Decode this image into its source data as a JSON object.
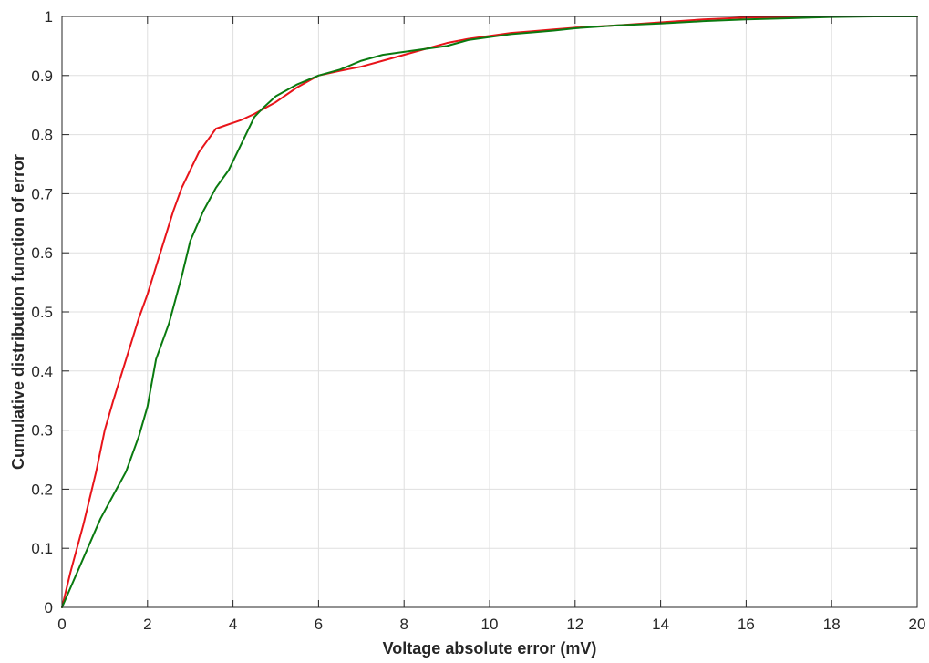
{
  "chart_data": {
    "type": "line",
    "title": "",
    "xlabel": "Voltage absolute error (mV)",
    "ylabel": "Cumulative distribution function of error",
    "xlim": [
      0,
      20
    ],
    "ylim": [
      0,
      1
    ],
    "xticks": [
      0,
      2,
      4,
      6,
      8,
      10,
      12,
      14,
      16,
      18,
      20
    ],
    "yticks": [
      0,
      0.1,
      0.2,
      0.3,
      0.4,
      0.5,
      0.6,
      0.7,
      0.8,
      0.9,
      1
    ],
    "xtick_labels": [
      "0",
      "2",
      "4",
      "6",
      "8",
      "10",
      "12",
      "14",
      "16",
      "18",
      "20"
    ],
    "ytick_labels": [
      "0",
      "0.1",
      "0.2",
      "0.3",
      "0.4",
      "0.5",
      "0.6",
      "0.7",
      "0.8",
      "0.9",
      "1"
    ],
    "grid": true,
    "legend": "none",
    "series": [
      {
        "color": "#e8141a",
        "x": [
          0,
          0.2,
          0.5,
          0.8,
          1.0,
          1.2,
          1.5,
          1.8,
          2.0,
          2.3,
          2.6,
          2.8,
          3.0,
          3.2,
          3.4,
          3.6,
          3.8,
          4.0,
          4.2,
          4.5,
          5.0,
          5.5,
          6.0,
          6.5,
          7.0,
          7.5,
          8.0,
          8.5,
          9.0,
          9.5,
          10.0,
          10.5,
          11.0,
          11.5,
          12.0,
          13.0,
          14.0,
          15.0,
          16.0,
          17.0,
          18.0,
          19.0,
          20.0
        ],
        "y": [
          0,
          0.06,
          0.14,
          0.23,
          0.3,
          0.35,
          0.42,
          0.49,
          0.53,
          0.6,
          0.67,
          0.71,
          0.74,
          0.77,
          0.79,
          0.81,
          0.815,
          0.82,
          0.825,
          0.835,
          0.855,
          0.88,
          0.9,
          0.908,
          0.915,
          0.925,
          0.935,
          0.945,
          0.955,
          0.962,
          0.967,
          0.972,
          0.975,
          0.978,
          0.981,
          0.985,
          0.99,
          0.995,
          0.998,
          0.999,
          1.0,
          1.0,
          1.0
        ]
      },
      {
        "color": "#0a7a10",
        "x": [
          0,
          0.3,
          0.6,
          0.9,
          1.2,
          1.5,
          1.8,
          2.0,
          2.2,
          2.5,
          2.8,
          3.0,
          3.3,
          3.6,
          3.9,
          4.1,
          4.3,
          4.5,
          4.7,
          5.0,
          5.5,
          6.0,
          6.5,
          7.0,
          7.5,
          8.0,
          8.5,
          9.0,
          9.5,
          10.0,
          10.5,
          11.0,
          11.5,
          12.0,
          13.0,
          14.0,
          15.0,
          16.0,
          17.0,
          18.0,
          19.0,
          20.0
        ],
        "y": [
          0,
          0.05,
          0.1,
          0.15,
          0.19,
          0.23,
          0.29,
          0.34,
          0.42,
          0.48,
          0.56,
          0.62,
          0.67,
          0.71,
          0.74,
          0.77,
          0.8,
          0.83,
          0.845,
          0.865,
          0.885,
          0.9,
          0.91,
          0.925,
          0.935,
          0.94,
          0.945,
          0.95,
          0.96,
          0.965,
          0.97,
          0.973,
          0.976,
          0.98,
          0.985,
          0.988,
          0.992,
          0.995,
          0.997,
          0.999,
          1.0,
          1.0
        ]
      }
    ]
  }
}
